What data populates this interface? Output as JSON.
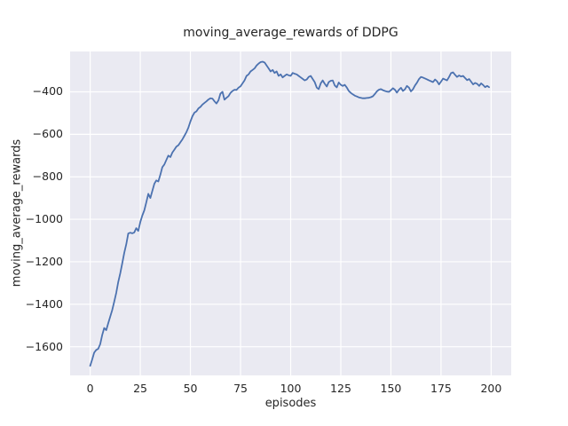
{
  "chart_data": {
    "type": "line",
    "title": "moving_average_rewards of DDPG",
    "xlabel": "episodes",
    "ylabel": "moving_average_rewards",
    "xlim": [
      -10,
      210
    ],
    "ylim": [
      -1735,
      -210
    ],
    "grid": true,
    "legend": "none",
    "x_ticks": [
      0,
      25,
      50,
      75,
      100,
      125,
      150,
      175,
      200
    ],
    "x_tick_labels": [
      "0",
      "25",
      "50",
      "75",
      "100",
      "125",
      "150",
      "175",
      "200"
    ],
    "y_ticks": [
      -400,
      -600,
      -800,
      -1000,
      -1200,
      -1400,
      -1600
    ],
    "y_tick_labels": [
      "−400",
      "−600",
      "−800",
      "−1000",
      "−1200",
      "−1400",
      "−1600"
    ],
    "style": {
      "fig_bg": "#ffffff",
      "axes_bg": "#eaeaf2",
      "grid_color": "#ffffff",
      "text_color": "#262626",
      "line_color": "#4c72b0"
    },
    "series": [
      {
        "name": "moving_average_rewards",
        "color": "#4c72b0",
        "x_start": 0,
        "x_step": 1,
        "values": [
          -1690,
          -1660,
          -1628,
          -1615,
          -1610,
          -1588,
          -1546,
          -1512,
          -1522,
          -1490,
          -1458,
          -1428,
          -1388,
          -1346,
          -1296,
          -1254,
          -1208,
          -1158,
          -1117,
          -1067,
          -1063,
          -1066,
          -1062,
          -1042,
          -1055,
          -1013,
          -983,
          -958,
          -921,
          -880,
          -900,
          -867,
          -833,
          -817,
          -822,
          -790,
          -755,
          -742,
          -721,
          -700,
          -707,
          -686,
          -672,
          -658,
          -651,
          -637,
          -624,
          -607,
          -590,
          -568,
          -540,
          -515,
          -498,
          -492,
          -478,
          -471,
          -460,
          -452,
          -445,
          -436,
          -430,
          -432,
          -445,
          -455,
          -440,
          -408,
          -400,
          -437,
          -428,
          -420,
          -405,
          -396,
          -390,
          -391,
          -380,
          -374,
          -360,
          -346,
          -325,
          -318,
          -304,
          -297,
          -290,
          -276,
          -267,
          -260,
          -258,
          -262,
          -276,
          -290,
          -304,
          -297,
          -311,
          -304,
          -325,
          -318,
          -332,
          -325,
          -318,
          -322,
          -325,
          -311,
          -315,
          -318,
          -325,
          -332,
          -339,
          -346,
          -342,
          -330,
          -325,
          -340,
          -354,
          -380,
          -387,
          -360,
          -346,
          -362,
          -375,
          -354,
          -348,
          -346,
          -370,
          -379,
          -356,
          -367,
          -372,
          -367,
          -380,
          -396,
          -405,
          -412,
          -418,
          -422,
          -426,
          -428,
          -430,
          -430,
          -429,
          -428,
          -425,
          -421,
          -410,
          -398,
          -390,
          -387,
          -392,
          -396,
          -399,
          -400,
          -392,
          -383,
          -390,
          -404,
          -390,
          -381,
          -396,
          -388,
          -372,
          -380,
          -398,
          -388,
          -370,
          -357,
          -340,
          -330,
          -333,
          -337,
          -341,
          -346,
          -350,
          -354,
          -342,
          -350,
          -365,
          -352,
          -338,
          -342,
          -346,
          -330,
          -312,
          -308,
          -320,
          -330,
          -323,
          -328,
          -325,
          -335,
          -345,
          -340,
          -352,
          -365,
          -358,
          -362,
          -372,
          -360,
          -368,
          -378,
          -372,
          -378
        ]
      }
    ]
  }
}
